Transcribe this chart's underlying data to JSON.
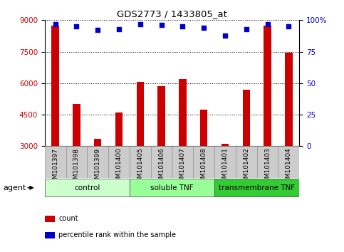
{
  "title": "GDS2773 / 1433805_at",
  "categories": [
    "GSM101397",
    "GSM101398",
    "GSM101399",
    "GSM101400",
    "GSM101405",
    "GSM101406",
    "GSM101407",
    "GSM101408",
    "GSM101401",
    "GSM101402",
    "GSM101403",
    "GSM101404"
  ],
  "bar_values": [
    8750,
    5000,
    3350,
    4600,
    6050,
    5850,
    6200,
    4750,
    3100,
    5700,
    8750,
    7450
  ],
  "percentile_values": [
    97,
    95,
    92,
    93,
    97,
    96,
    95,
    94,
    88,
    93,
    97,
    95
  ],
  "bar_color": "#cc0000",
  "dot_color": "#0000cc",
  "ylim_left": [
    3000,
    9000
  ],
  "ylim_right": [
    0,
    100
  ],
  "yticks_left": [
    3000,
    4500,
    6000,
    7500,
    9000
  ],
  "yticks_right": [
    0,
    25,
    50,
    75,
    100
  ],
  "ytick_labels_right": [
    "0",
    "25",
    "50",
    "75",
    "100%"
  ],
  "grid_color": "#000000",
  "groups": [
    {
      "label": "control",
      "start": 0,
      "end": 4,
      "color": "#ccffcc"
    },
    {
      "label": "soluble TNF",
      "start": 4,
      "end": 8,
      "color": "#99ff99"
    },
    {
      "label": "transmembrane TNF",
      "start": 8,
      "end": 12,
      "color": "#33cc33"
    }
  ],
  "agent_label": "agent",
  "legend_items": [
    {
      "color": "#cc0000",
      "marker": "s",
      "label": "count"
    },
    {
      "color": "#0000cc",
      "marker": "s",
      "label": "percentile rank within the sample"
    }
  ],
  "tick_label_color_left": "#cc0000",
  "tick_label_color_right": "#0000cc",
  "background_color": "#ffffff",
  "plot_bg_color": "#ffffff",
  "xtick_box_color": "#cccccc",
  "bar_width": 0.35
}
